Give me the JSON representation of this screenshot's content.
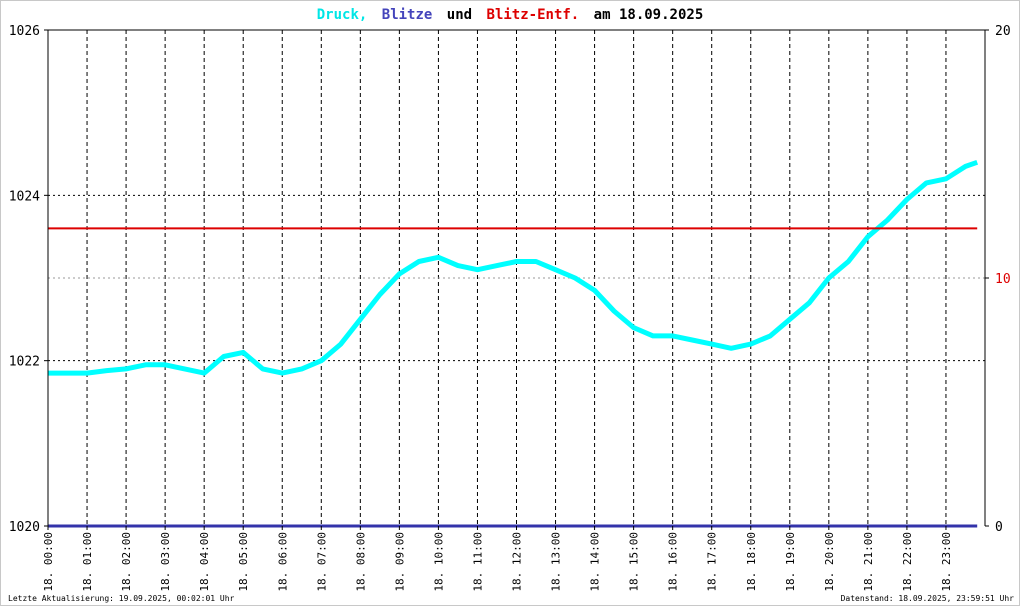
{
  "title": {
    "part1": "Druck,",
    "part2": "Blitze",
    "part3": "und",
    "part4": "Blitz-Entf.",
    "part5": "am 18.09.2025"
  },
  "footer": {
    "left": "Letzte Aktualisierung: 19.09.2025, 00:02:01 Uhr",
    "right": "Datenstand: 18.09.2025, 23:59:51 Uhr"
  },
  "colors": {
    "pressure": "#00ffff",
    "lightning": "#3333aa",
    "distance": "#dd0000",
    "axis": "#000000",
    "grid": "#000000"
  },
  "chart_data": {
    "type": "line",
    "title": "Druck, Blitze und Blitz-Entf. am 18.09.2025",
    "x_range_hours": [
      0,
      24
    ],
    "x_tick_labels": [
      "18. 00:00",
      "18. 01:00",
      "18. 02:00",
      "18. 03:00",
      "18. 04:00",
      "18. 05:00",
      "18. 06:00",
      "18. 07:00",
      "18. 08:00",
      "18. 09:00",
      "18. 10:00",
      "18. 11:00",
      "18. 12:00",
      "18. 13:00",
      "18. 14:00",
      "18. 15:00",
      "18. 16:00",
      "18. 17:00",
      "18. 18:00",
      "18. 19:00",
      "18. 20:00",
      "18. 21:00",
      "18. 22:00",
      "18. 23:00"
    ],
    "y_left": {
      "range": [
        1020,
        1026
      ],
      "ticks": [
        "1020",
        "1022",
        "1024",
        "1026"
      ]
    },
    "y_right": {
      "range": [
        0,
        20
      ],
      "ticks": [
        "0",
        "10",
        "20"
      ]
    },
    "grid": true,
    "series": [
      {
        "name": "Druck",
        "axis": "left",
        "x": [
          0,
          0.5,
          1,
          1.5,
          2,
          2.5,
          3,
          3.5,
          4,
          4.5,
          5,
          5.5,
          6,
          6.5,
          7,
          7.5,
          8,
          8.5,
          9,
          9.5,
          10,
          10.5,
          11,
          11.5,
          12,
          12.5,
          13,
          13.5,
          14,
          14.5,
          15,
          15.5,
          16,
          16.5,
          17,
          17.5,
          18,
          18.5,
          19,
          19.5,
          20,
          20.5,
          21,
          21.5,
          22,
          22.5,
          23,
          23.5,
          23.8
        ],
        "values": [
          1021.85,
          1021.85,
          1021.85,
          1021.88,
          1021.9,
          1021.95,
          1021.95,
          1021.9,
          1021.85,
          1022.05,
          1022.1,
          1021.9,
          1021.85,
          1021.9,
          1022.0,
          1022.2,
          1022.5,
          1022.8,
          1023.05,
          1023.2,
          1023.25,
          1023.15,
          1023.1,
          1023.15,
          1023.2,
          1023.2,
          1023.1,
          1023.0,
          1022.85,
          1022.6,
          1022.4,
          1022.3,
          1022.3,
          1022.25,
          1022.2,
          1022.15,
          1022.2,
          1022.3,
          1022.5,
          1022.7,
          1023.0,
          1023.2,
          1023.5,
          1023.7,
          1023.95,
          1024.15,
          1024.2,
          1024.35,
          1024.4
        ]
      },
      {
        "name": "Blitze",
        "axis": "right",
        "x": [
          0,
          23.8
        ],
        "values": [
          0,
          0
        ]
      },
      {
        "name": "Blitz-Entf.",
        "axis": "right",
        "x": [
          0,
          23.8
        ],
        "values": [
          12,
          12
        ]
      }
    ]
  }
}
